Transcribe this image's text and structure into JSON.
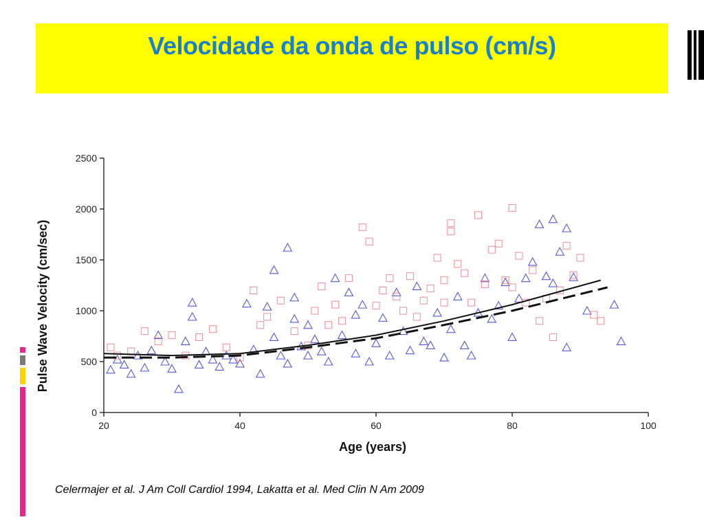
{
  "slide": {
    "title": "Velocidade da onda de pulso (cm/s)",
    "citation": "Celermajer et al. J Am Coll Cardiol 1994, Lakatta et al. Med Clin N Am 2009",
    "logo_icon": "stacked-bars-logo-icon",
    "colors": {
      "title_bar": "#ffff00",
      "title_text": "#1a80c9",
      "stripe_pink": "#e8258c",
      "stripe_gray": "#7a7a7a",
      "stripe_yellow": "#ffd200"
    }
  },
  "chart_data": {
    "type": "scatter",
    "title": "",
    "xlabel": "Age (years)",
    "ylabel": "Pulse Wave Velocity (cm/sec)",
    "xlim": [
      20,
      100
    ],
    "ylim": [
      0,
      2500
    ],
    "x_ticks": [
      "20",
      "40",
      "60",
      "80",
      "100"
    ],
    "y_ticks": [
      "0",
      "500",
      "1000",
      "1500",
      "2000",
      "2500"
    ],
    "grid": false,
    "legend": "none",
    "series": [
      {
        "marker": "triangle",
        "color": "#3a3ad6",
        "points": [
          [
            21,
            420
          ],
          [
            22,
            520
          ],
          [
            23,
            470
          ],
          [
            24,
            380
          ],
          [
            25,
            560
          ],
          [
            26,
            440
          ],
          [
            27,
            610
          ],
          [
            28,
            760
          ],
          [
            29,
            500
          ],
          [
            30,
            430
          ],
          [
            31,
            230
          ],
          [
            32,
            700
          ],
          [
            33,
            1080
          ],
          [
            33,
            940
          ],
          [
            34,
            470
          ],
          [
            35,
            600
          ],
          [
            36,
            520
          ],
          [
            37,
            450
          ],
          [
            38,
            560
          ],
          [
            39,
            520
          ],
          [
            40,
            480
          ],
          [
            41,
            1070
          ],
          [
            42,
            620
          ],
          [
            43,
            380
          ],
          [
            44,
            1040
          ],
          [
            45,
            1400
          ],
          [
            45,
            740
          ],
          [
            46,
            560
          ],
          [
            47,
            1620
          ],
          [
            47,
            480
          ],
          [
            48,
            920
          ],
          [
            48,
            1130
          ],
          [
            49,
            650
          ],
          [
            50,
            560
          ],
          [
            50,
            860
          ],
          [
            51,
            720
          ],
          [
            52,
            600
          ],
          [
            53,
            500
          ],
          [
            54,
            1320
          ],
          [
            55,
            760
          ],
          [
            56,
            1180
          ],
          [
            57,
            960
          ],
          [
            57,
            580
          ],
          [
            58,
            1060
          ],
          [
            59,
            500
          ],
          [
            60,
            680
          ],
          [
            61,
            930
          ],
          [
            62,
            560
          ],
          [
            63,
            1180
          ],
          [
            64,
            800
          ],
          [
            65,
            610
          ],
          [
            66,
            1240
          ],
          [
            67,
            700
          ],
          [
            68,
            660
          ],
          [
            69,
            980
          ],
          [
            70,
            540
          ],
          [
            71,
            820
          ],
          [
            72,
            1140
          ],
          [
            73,
            660
          ],
          [
            74,
            560
          ],
          [
            75,
            980
          ],
          [
            76,
            1320
          ],
          [
            77,
            920
          ],
          [
            78,
            1050
          ],
          [
            79,
            1280
          ],
          [
            80,
            740
          ],
          [
            81,
            1120
          ],
          [
            82,
            1320
          ],
          [
            83,
            1480
          ],
          [
            84,
            1850
          ],
          [
            85,
            1340
          ],
          [
            86,
            1900
          ],
          [
            86,
            1270
          ],
          [
            87,
            1580
          ],
          [
            88,
            1810
          ],
          [
            89,
            1330
          ],
          [
            88,
            640
          ],
          [
            91,
            1000
          ],
          [
            95,
            1060
          ],
          [
            96,
            700
          ]
        ]
      },
      {
        "marker": "square",
        "color": "#f07a8a",
        "points": [
          [
            21,
            640
          ],
          [
            22,
            560
          ],
          [
            24,
            600
          ],
          [
            26,
            800
          ],
          [
            28,
            700
          ],
          [
            30,
            760
          ],
          [
            32,
            560
          ],
          [
            34,
            740
          ],
          [
            36,
            820
          ],
          [
            38,
            640
          ],
          [
            40,
            540
          ],
          [
            42,
            1200
          ],
          [
            43,
            860
          ],
          [
            44,
            940
          ],
          [
            46,
            1100
          ],
          [
            48,
            800
          ],
          [
            50,
            660
          ],
          [
            51,
            1000
          ],
          [
            52,
            1240
          ],
          [
            53,
            860
          ],
          [
            54,
            1060
          ],
          [
            55,
            900
          ],
          [
            56,
            1320
          ],
          [
            58,
            1820
          ],
          [
            59,
            1680
          ],
          [
            60,
            1050
          ],
          [
            61,
            1200
          ],
          [
            62,
            1320
          ],
          [
            63,
            1140
          ],
          [
            64,
            1000
          ],
          [
            65,
            1340
          ],
          [
            66,
            940
          ],
          [
            67,
            1100
          ],
          [
            68,
            1220
          ],
          [
            69,
            1520
          ],
          [
            70,
            1300
          ],
          [
            70,
            1080
          ],
          [
            71,
            1860
          ],
          [
            71,
            1780
          ],
          [
            72,
            1460
          ],
          [
            73,
            1370
          ],
          [
            74,
            1080
          ],
          [
            75,
            1940
          ],
          [
            76,
            1260
          ],
          [
            77,
            1600
          ],
          [
            78,
            1660
          ],
          [
            79,
            1300
          ],
          [
            80,
            2010
          ],
          [
            80,
            1230
          ],
          [
            81,
            1540
          ],
          [
            82,
            1080
          ],
          [
            83,
            1400
          ],
          [
            84,
            900
          ],
          [
            85,
            1120
          ],
          [
            86,
            740
          ],
          [
            87,
            1200
          ],
          [
            88,
            1640
          ],
          [
            89,
            1350
          ],
          [
            90,
            1520
          ],
          [
            92,
            960
          ],
          [
            93,
            900
          ]
        ]
      }
    ],
    "trend_lines": [
      {
        "style": "solid",
        "points": [
          [
            20,
            580
          ],
          [
            30,
            560
          ],
          [
            40,
            580
          ],
          [
            45,
            620
          ],
          [
            50,
            660
          ],
          [
            60,
            760
          ],
          [
            70,
            900
          ],
          [
            80,
            1060
          ],
          [
            93,
            1300
          ]
        ]
      },
      {
        "style": "dashed",
        "points": [
          [
            20,
            540
          ],
          [
            30,
            540
          ],
          [
            40,
            560
          ],
          [
            45,
            600
          ],
          [
            50,
            640
          ],
          [
            60,
            730
          ],
          [
            70,
            860
          ],
          [
            80,
            1000
          ],
          [
            94,
            1230
          ]
        ]
      }
    ]
  }
}
